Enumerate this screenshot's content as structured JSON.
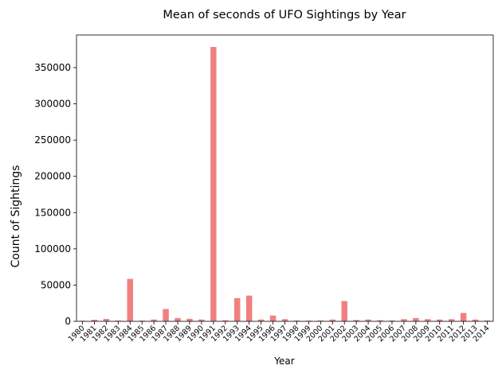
{
  "chart_data": {
    "type": "bar",
    "title": "Mean of seconds of UFO Sightings by Year",
    "xlabel": "Year",
    "ylabel": "Count of Sightings",
    "categories": [
      "1980",
      "1981",
      "1982",
      "1983",
      "1984",
      "1985",
      "1986",
      "1987",
      "1988",
      "1989",
      "1990",
      "1991",
      "1992",
      "1993",
      "1994",
      "1995",
      "1996",
      "1997",
      "1998",
      "1999",
      "2000",
      "2001",
      "2002",
      "2003",
      "2004",
      "2005",
      "2006",
      "2007",
      "2008",
      "2009",
      "2010",
      "2011",
      "2012",
      "2013",
      "2014"
    ],
    "values": [
      800,
      2200,
      3300,
      1100,
      58500,
      1000,
      2500,
      17000,
      4500,
      3500,
      2500,
      378500,
      1500,
      32000,
      35500,
      2500,
      8000,
      3000,
      1200,
      1000,
      1200,
      2500,
      28000,
      1800,
      2500,
      1500,
      1200,
      3000,
      4500,
      3000,
      2500,
      3000,
      11500,
      2500,
      1200
    ],
    "ylim": [
      0,
      395000
    ],
    "yticks": [
      0,
      50000,
      100000,
      150000,
      200000,
      250000,
      300000,
      350000
    ],
    "bar_color": "#f08080",
    "grid": false,
    "legend": "none"
  }
}
